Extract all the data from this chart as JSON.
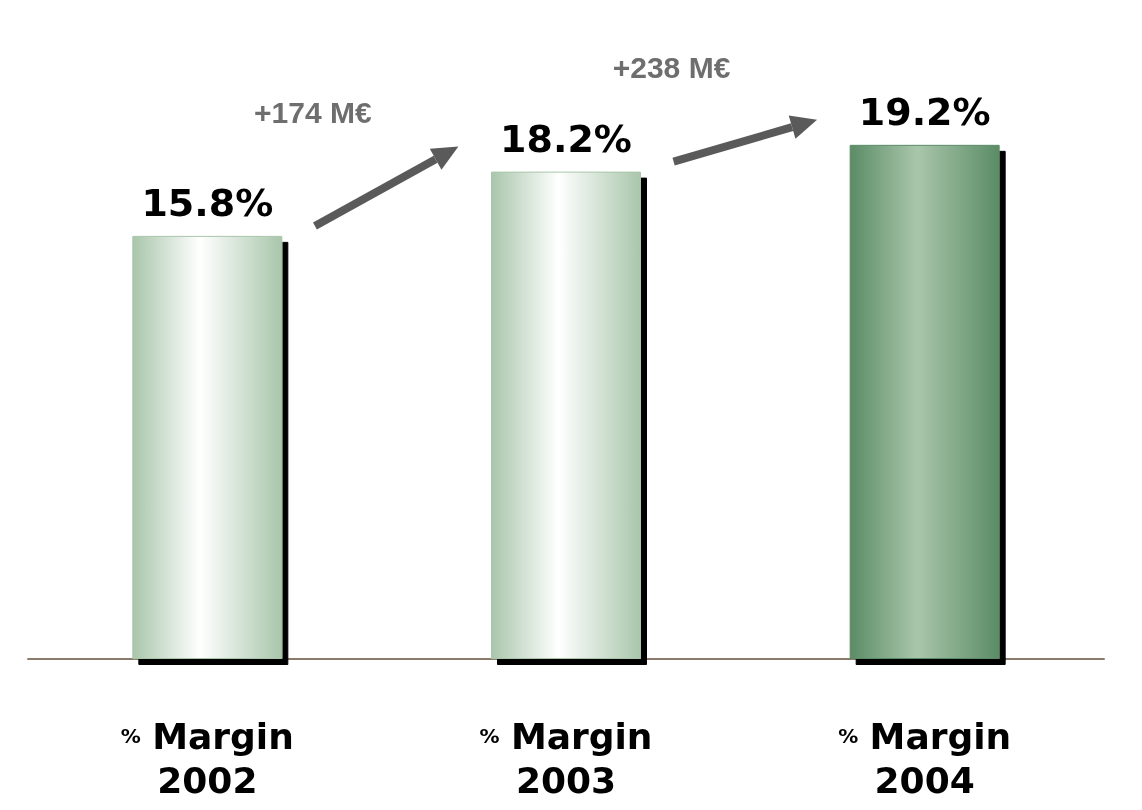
{
  "chart_data": {
    "type": "bar",
    "categories": [
      "% Margin 2002",
      "% Margin 2003",
      "% Margin 2004"
    ],
    "values": [
      15.8,
      18.2,
      19.2
    ],
    "value_labels": [
      "15.8%",
      "18.2%",
      "19.2%"
    ],
    "colors": [
      "#a9c6ab",
      "#a9c6ab",
      "#5b8c66"
    ],
    "annotations": [
      "+174 M€",
      "+238 M€"
    ],
    "grid": false
  }
}
